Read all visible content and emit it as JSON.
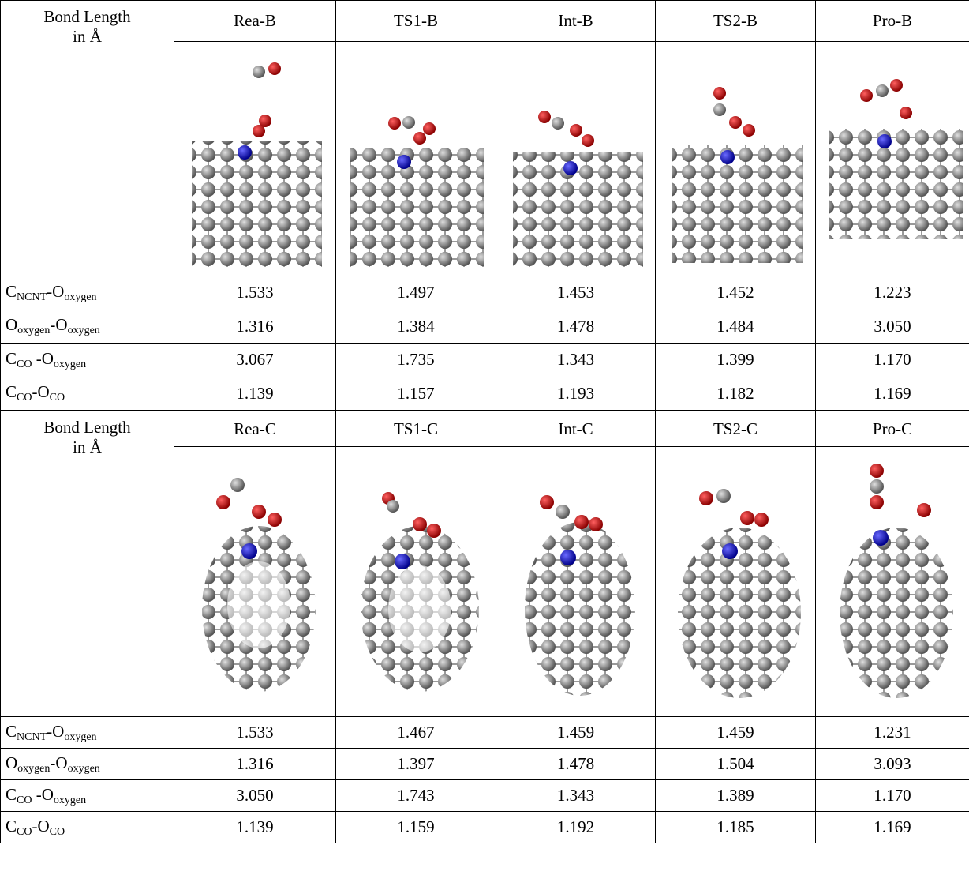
{
  "tables": [
    {
      "header": {
        "label": [
          "Bond Length",
          "in Å"
        ],
        "columns": [
          "Rea-B",
          "TS1-B",
          "Int-B",
          "TS2-B",
          "Pro-B"
        ]
      },
      "rows": [
        {
          "label": [
            "C",
            "NCNT",
            "-O",
            "oxygen"
          ],
          "values": [
            "1.533",
            "1.497",
            "1.453",
            "1.452",
            "1.223"
          ]
        },
        {
          "label": [
            "O",
            "oxygen",
            "-O",
            "oxygen"
          ],
          "values": [
            "1.316",
            "1.384",
            "1.478",
            "1.484",
            "3.050"
          ]
        },
        {
          "label": [
            "C",
            "CO",
            " -O",
            "oxygen"
          ],
          "values": [
            "3.067",
            "1.735",
            "1.343",
            "1.399",
            "1.170"
          ]
        },
        {
          "label": [
            "C",
            "CO",
            "-O",
            "CO"
          ],
          "values": [
            "1.139",
            "1.157",
            "1.193",
            "1.182",
            "1.169"
          ]
        }
      ]
    },
    {
      "header": {
        "label": [
          "Bond Length",
          "in Å"
        ],
        "columns": [
          "Rea-C",
          "TS1-C",
          "Int-C",
          "TS2-C",
          "Pro-C"
        ]
      },
      "rows": [
        {
          "label": [
            "C",
            "NCNT",
            "-O",
            "oxygen"
          ],
          "values": [
            "1.533",
            "1.467",
            "1.459",
            "1.459",
            "1.231"
          ]
        },
        {
          "label": [
            "O",
            "oxygen",
            "-O",
            "oxygen"
          ],
          "values": [
            "1.316",
            "1.397",
            "1.478",
            "1.504",
            "3.093"
          ]
        },
        {
          "label": [
            "C",
            "CO",
            " -O",
            "oxygen"
          ],
          "values": [
            "3.050",
            "1.743",
            "1.343",
            "1.389",
            "1.170"
          ]
        },
        {
          "label": [
            "C",
            "CO",
            "-O",
            "CO"
          ],
          "values": [
            "1.139",
            "1.159",
            "1.192",
            "1.185",
            "1.169"
          ]
        }
      ]
    }
  ]
}
